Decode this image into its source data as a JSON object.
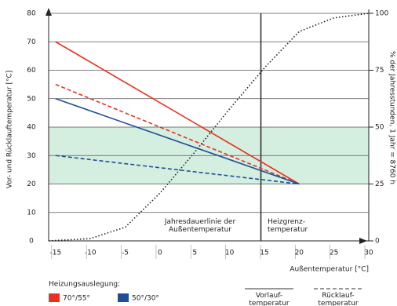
{
  "chart_data": {
    "type": "line",
    "ylabel": "Vor- und Rücklauftemperatur [°C]",
    "y2label": "% der Jahresstunden, 1 Jahr = 8760 h",
    "xlabel": "Außentemperatur [°C]",
    "xlim": [
      -16,
      30
    ],
    "xticks": [
      -15,
      -10,
      -5,
      0,
      5,
      10,
      15,
      20,
      25,
      30
    ],
    "ylim": [
      0,
      80
    ],
    "yticks": [
      0,
      10,
      20,
      30,
      40,
      50,
      60,
      70,
      80
    ],
    "y2lim": [
      0,
      100
    ],
    "y2ticks": [
      0,
      25,
      50,
      75,
      100
    ],
    "grid": true,
    "band": [
      20,
      40
    ],
    "band_color": "#d4eee0",
    "vline_x": 14.5,
    "annotations": [
      "Jahresdauerlinie der Außentemperatur",
      "Heizgrenz-temperatur"
    ],
    "series": [
      {
        "color": "#e8321e",
        "dash": "solid",
        "x": [
          -15,
          20
        ],
        "values": [
          70,
          20
        ]
      },
      {
        "color": "#e8321e",
        "dash": "dashed",
        "x": [
          -15,
          20
        ],
        "values": [
          55,
          20
        ]
      },
      {
        "color": "#1f4f96",
        "dash": "solid",
        "x": [
          -15,
          20
        ],
        "values": [
          50,
          20
        ]
      },
      {
        "color": "#1f4f96",
        "dash": "dashed",
        "x": [
          -15,
          20
        ],
        "values": [
          30,
          20
        ]
      },
      {
        "color": "#222222",
        "dash": "dotted",
        "axis": "y2",
        "x": [
          -16,
          -10,
          -5,
          0,
          5,
          10,
          15,
          20,
          25,
          30
        ],
        "values": [
          0,
          1,
          6,
          21,
          39,
          58,
          76,
          92,
          98,
          100
        ]
      }
    ],
    "legend": {
      "title": "Heizungsauslegung:",
      "items": [
        {
          "label": "70°/55°",
          "color": "#e8321e"
        },
        {
          "label": "50°/30°",
          "color": "#1f4f96"
        }
      ],
      "styles": [
        {
          "label": "Vorlauf-temperatur",
          "dash": "solid"
        },
        {
          "label": "Rücklauf-temperatur",
          "dash": "dashed"
        }
      ]
    }
  }
}
